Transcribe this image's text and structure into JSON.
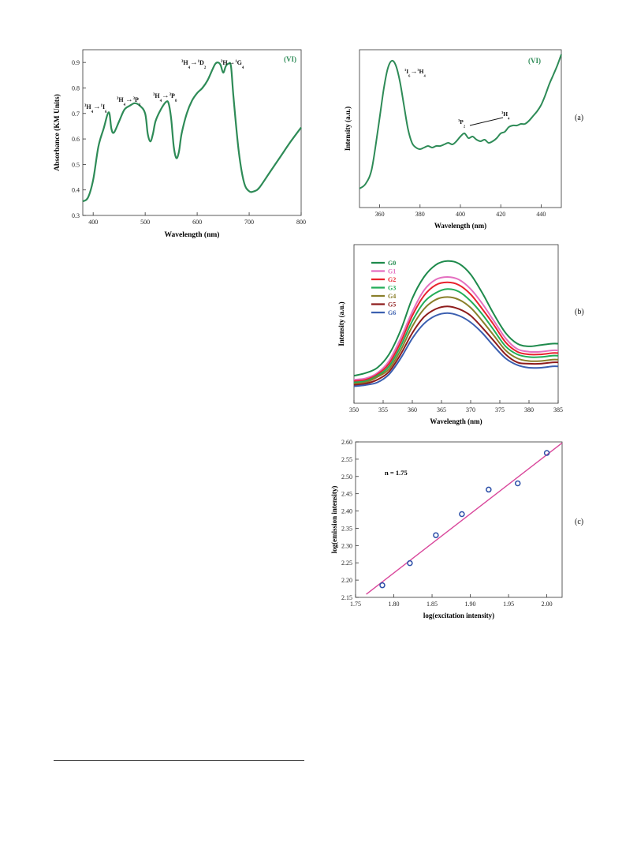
{
  "panels": {
    "a": "(a)",
    "b": "(b)",
    "c": "(c)"
  },
  "chart_data": [
    {
      "id": "abs",
      "type": "line",
      "title": "",
      "xlabel": "Wavelength (nm)",
      "ylabel": "Absorbance (KM Units)",
      "xlim": [
        380,
        800
      ],
      "ylim": [
        0.3,
        0.95
      ],
      "xticks": [
        400,
        500,
        600,
        700,
        800
      ],
      "yticks": [
        0.3,
        0.4,
        0.5,
        0.6,
        0.7,
        0.8,
        0.9
      ],
      "tag": "(VI)",
      "color": "#2e8b57",
      "series": [
        {
          "x": [
            380,
            390,
            400,
            410,
            420,
            430,
            435,
            440,
            450,
            460,
            470,
            480,
            490,
            500,
            505,
            510,
            515,
            520,
            530,
            540,
            545,
            550,
            555,
            560,
            565,
            570,
            580,
            590,
            600,
            610,
            620,
            630,
            635,
            640,
            645,
            650,
            655,
            660,
            665,
            670,
            680,
            690,
            700,
            710,
            720,
            740,
            760,
            780,
            800
          ],
          "y": [
            0.355,
            0.37,
            0.44,
            0.57,
            0.64,
            0.705,
            0.64,
            0.625,
            0.67,
            0.715,
            0.73,
            0.74,
            0.73,
            0.7,
            0.62,
            0.59,
            0.62,
            0.67,
            0.715,
            0.745,
            0.74,
            0.68,
            0.57,
            0.525,
            0.55,
            0.62,
            0.7,
            0.75,
            0.78,
            0.8,
            0.83,
            0.875,
            0.895,
            0.9,
            0.89,
            0.86,
            0.885,
            0.895,
            0.885,
            0.76,
            0.55,
            0.43,
            0.395,
            0.395,
            0.41,
            0.47,
            0.53,
            0.59,
            0.645
          ]
        }
      ],
      "annotations": [
        {
          "parts": [
            [
              "3",
              "sup"
            ],
            [
              "H",
              "n"
            ],
            [
              "4",
              "sub"
            ],
            [
              "→",
              ""
            ],
            [
              "1",
              "sup"
            ],
            [
              "I",
              "n"
            ],
            [
              "6",
              "sub"
            ]
          ]
        },
        {
          "parts": [
            [
              "3",
              "sup"
            ],
            [
              "H",
              "n"
            ],
            [
              "4",
              "sub"
            ],
            [
              "→",
              ""
            ],
            [
              "3",
              "sup"
            ],
            [
              "P",
              "n"
            ],
            [
              "1",
              "sub"
            ]
          ]
        },
        {
          "parts": [
            [
              "3",
              "sup"
            ],
            [
              "H",
              "n"
            ],
            [
              "4",
              "sub"
            ],
            [
              "→",
              ""
            ],
            [
              "3",
              "sup"
            ],
            [
              "P",
              "n"
            ],
            [
              "0",
              "sub"
            ]
          ]
        },
        {
          "parts": [
            [
              "3",
              "sup"
            ],
            [
              "H",
              "n"
            ],
            [
              "4",
              "sub"
            ],
            [
              "→",
              ""
            ],
            [
              "1",
              "sup"
            ],
            [
              "D",
              "n"
            ],
            [
              "2",
              "sub"
            ]
          ]
        },
        {
          "parts": [
            [
              "3",
              "sup"
            ],
            [
              "H",
              "n"
            ],
            [
              "→",
              ""
            ],
            [
              "1",
              "sup"
            ],
            [
              "G",
              "n"
            ],
            [
              "4",
              "sub"
            ]
          ]
        }
      ]
    },
    {
      "id": "a",
      "type": "line",
      "title": "",
      "xlabel": "Wavelength (nm)",
      "ylabel": "Intensity (a.u.)",
      "xlim": [
        350,
        450
      ],
      "ylim": [
        0,
        100
      ],
      "xticks": [
        360,
        380,
        400,
        420,
        440
      ],
      "tag": "(VI)",
      "color": "#2e8b57",
      "series": [
        {
          "x": [
            350,
            353,
            356,
            359,
            362,
            364,
            366,
            368,
            370,
            372,
            374,
            376,
            378,
            380,
            382,
            384,
            386,
            388,
            390,
            392,
            394,
            396,
            398,
            400,
            402,
            404,
            406,
            408,
            410,
            412,
            414,
            416,
            418,
            420,
            422,
            424,
            426,
            428,
            430,
            432,
            434,
            436,
            438,
            440,
            442,
            444,
            446,
            448,
            450
          ],
          "y": [
            12,
            15,
            24,
            48,
            75,
            88,
            93,
            90,
            80,
            65,
            50,
            41,
            38,
            37,
            38,
            39,
            38,
            39,
            39,
            40,
            41,
            40,
            42,
            45,
            47,
            44,
            45,
            43,
            42,
            43,
            41,
            42,
            44,
            47,
            48,
            51,
            52,
            52,
            53,
            53,
            55,
            58,
            61,
            65,
            71,
            78,
            84,
            90,
            97
          ]
        }
      ],
      "annotations": [
        {
          "parts": [
            [
              "1",
              "sup"
            ],
            [
              "I",
              "n"
            ],
            [
              "6",
              "sub"
            ],
            [
              "→",
              ""
            ],
            [
              "3",
              "sup"
            ],
            [
              "H",
              "n"
            ],
            [
              "4",
              "sub"
            ]
          ]
        },
        {
          "parts": [
            [
              "3",
              "sup"
            ],
            [
              "P",
              "n"
            ],
            [
              "2",
              "sub"
            ]
          ]
        },
        {
          "parts": [
            [
              "3",
              "sup"
            ],
            [
              "H",
              "n"
            ],
            [
              "4",
              "sub"
            ]
          ]
        }
      ]
    },
    {
      "id": "b",
      "type": "line",
      "title": "",
      "xlabel": "Wavelength (nm)",
      "ylabel": "Intensity (a.u.)",
      "xlim": [
        350,
        385
      ],
      "ylim": [
        0,
        100
      ],
      "xticks": [
        350,
        355,
        360,
        365,
        370,
        375,
        380,
        385
      ],
      "x": [
        350,
        352,
        354,
        356,
        358,
        360,
        362,
        364,
        366,
        368,
        370,
        372,
        374,
        376,
        378,
        380,
        382,
        384,
        385
      ],
      "series": [
        {
          "name": "G0",
          "color": "#1e8a4c",
          "values": [
            10,
            12,
            16,
            26,
            44,
            68,
            84,
            93,
            96,
            94,
            86,
            72,
            56,
            42,
            34,
            32,
            33,
            34,
            34
          ]
        },
        {
          "name": "G1",
          "color": "#e46fc0",
          "values": [
            7,
            8,
            12,
            21,
            38,
            58,
            74,
            82,
            84,
            82,
            75,
            64,
            51,
            38,
            30,
            28,
            28,
            29,
            29
          ]
        },
        {
          "name": "G2",
          "color": "#e8232e",
          "values": [
            6,
            7,
            11,
            19,
            35,
            55,
            70,
            78,
            80,
            78,
            71,
            60,
            48,
            35,
            28,
            26,
            26,
            27,
            27
          ]
        },
        {
          "name": "G3",
          "color": "#22ad58",
          "values": [
            5,
            6,
            10,
            17,
            32,
            51,
            65,
            72,
            75,
            73,
            66,
            56,
            44,
            32,
            26,
            24,
            24,
            25,
            25
          ]
        },
        {
          "name": "G4",
          "color": "#8a7f2a",
          "values": [
            4,
            5,
            9,
            15,
            29,
            47,
            60,
            67,
            69,
            67,
            61,
            51,
            40,
            29,
            23,
            21,
            21,
            22,
            22
          ]
        },
        {
          "name": "G5",
          "color": "#8e1c1c",
          "values": [
            3,
            4,
            7,
            13,
            26,
            42,
            54,
            60,
            62,
            60,
            55,
            46,
            36,
            26,
            20,
            19,
            19,
            20,
            20
          ]
        },
        {
          "name": "G6",
          "color": "#3b5fb0",
          "values": [
            2,
            3,
            5,
            11,
            23,
            38,
            49,
            55,
            57,
            55,
            50,
            42,
            32,
            23,
            18,
            16,
            16,
            17,
            17
          ]
        }
      ]
    },
    {
      "id": "c",
      "type": "scatter",
      "title": "",
      "xlabel": "log(excitation intensity)",
      "ylabel": "log(emission intensity)",
      "xlim": [
        1.75,
        2.02
      ],
      "ylim": [
        2.15,
        2.6
      ],
      "xticks": [
        "1.75",
        "1.80",
        "1.85",
        "1.90",
        "1.95",
        "2.00"
      ],
      "yticks": [
        "2.15",
        "2.20",
        "2.25",
        "2.30",
        "2.35",
        "2.40",
        "2.45",
        "2.50",
        "2.55",
        "2.60"
      ],
      "annotation": "n = 1.75",
      "point_color": "#2c4fa8",
      "fit_color": "#d9479b",
      "points": {
        "x": [
          1.785,
          1.821,
          1.855,
          1.889,
          1.924,
          1.962,
          2.0
        ],
        "y": [
          2.185,
          2.249,
          2.33,
          2.391,
          2.462,
          2.48,
          2.568
        ]
      },
      "fit": {
        "x": [
          1.764,
          2.02
        ],
        "y": [
          2.159,
          2.597
        ]
      }
    }
  ]
}
